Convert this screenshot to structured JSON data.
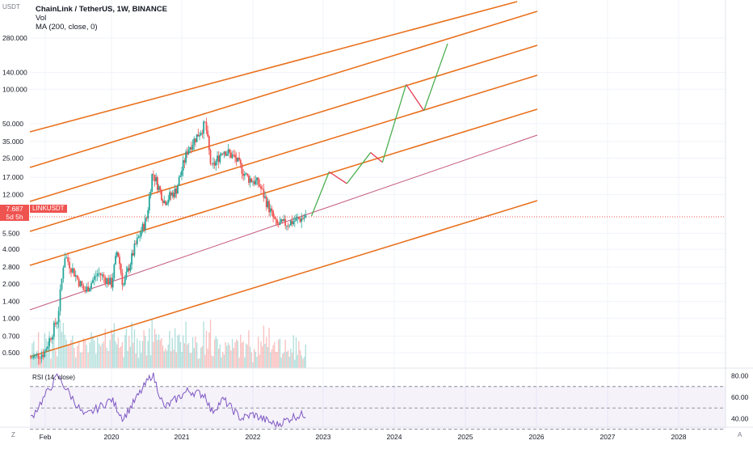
{
  "header": {
    "title": "ChainLink / TetherUS, 1W, BINANCE",
    "vol_label": "Vol",
    "ma_label": "MA (200, close, 0)",
    "unit": "USDT"
  },
  "price": {
    "last": "7.687",
    "countdown": "5d 5h",
    "symbol": "LINKUSDT"
  },
  "rsi": {
    "label": "RSI (14, close)",
    "ticks": [
      "80.00",
      "60.00",
      "40.00"
    ]
  },
  "corner": {
    "left": "Z",
    "right": "A"
  },
  "colors": {
    "channel": "#e8711e",
    "median": "#c2577a",
    "projection_up": "#4caf50",
    "projection_down": "#e53950",
    "up_candle": "#26a69a",
    "down_candle": "#ef5350",
    "rsi_line": "#7e57c2"
  },
  "chart_data": {
    "type": "line",
    "scale": "log",
    "y_ticks": [
      "280.000",
      "140.000",
      "100.000",
      "50.000",
      "35.000",
      "25.000",
      "17.000",
      "12.000",
      "5.500",
      "4.000",
      "2.800",
      "2.000",
      "1.400",
      "1.000",
      "0.700",
      "0.500"
    ],
    "x_ticks": [
      "Feb",
      "2020",
      "2021",
      "2022",
      "2023",
      "2024",
      "2025",
      "2026",
      "2027",
      "2028"
    ],
    "price_path": [
      {
        "date": "2019-01",
        "price": 0.45
      },
      {
        "date": "2019-03",
        "price": 0.5
      },
      {
        "date": "2019-05",
        "price": 1.0
      },
      {
        "date": "2019-06",
        "price": 3.6
      },
      {
        "date": "2019-07",
        "price": 2.8
      },
      {
        "date": "2019-09",
        "price": 1.7
      },
      {
        "date": "2019-11",
        "price": 2.5
      },
      {
        "date": "2020-01",
        "price": 2.0
      },
      {
        "date": "2020-02",
        "price": 4.0
      },
      {
        "date": "2020-03",
        "price": 1.9
      },
      {
        "date": "2020-05",
        "price": 4.2
      },
      {
        "date": "2020-07",
        "price": 7.5
      },
      {
        "date": "2020-08",
        "price": 19.0
      },
      {
        "date": "2020-10",
        "price": 10.5
      },
      {
        "date": "2020-12",
        "price": 13.0
      },
      {
        "date": "2021-02",
        "price": 30.0
      },
      {
        "date": "2021-05",
        "price": 50.0
      },
      {
        "date": "2021-06",
        "price": 20.0
      },
      {
        "date": "2021-08",
        "price": 30.0
      },
      {
        "date": "2021-10",
        "price": 25.0
      },
      {
        "date": "2021-12",
        "price": 17.0
      },
      {
        "date": "2022-02",
        "price": 15.0
      },
      {
        "date": "2022-05",
        "price": 6.5
      },
      {
        "date": "2022-07",
        "price": 6.8
      },
      {
        "date": "2022-10",
        "price": 7.69
      }
    ],
    "projection": [
      {
        "date": "2022-11",
        "price": 7.8
      },
      {
        "date": "2023-02",
        "price": 19.0
      },
      {
        "date": "2023-05",
        "price": 15.0
      },
      {
        "date": "2023-09",
        "price": 28.0
      },
      {
        "date": "2023-11",
        "price": 23.0
      },
      {
        "date": "2024-03",
        "price": 110.0
      },
      {
        "date": "2024-06",
        "price": 65.0
      },
      {
        "date": "2024-10",
        "price": 250.0
      }
    ],
    "rsi_values": [
      {
        "date": "2019-01",
        "rsi": 40
      },
      {
        "date": "2019-05",
        "rsi": 80
      },
      {
        "date": "2019-09",
        "rsi": 42
      },
      {
        "date": "2020-01",
        "rsi": 58
      },
      {
        "date": "2020-03",
        "rsi": 40
      },
      {
        "date": "2020-08",
        "rsi": 82
      },
      {
        "date": "2020-10",
        "rsi": 50
      },
      {
        "date": "2021-02",
        "rsi": 66
      },
      {
        "date": "2021-05",
        "rsi": 62
      },
      {
        "date": "2021-06",
        "rsi": 46
      },
      {
        "date": "2021-08",
        "rsi": 58
      },
      {
        "date": "2021-11",
        "rsi": 40
      },
      {
        "date": "2022-01",
        "rsi": 44
      },
      {
        "date": "2022-05",
        "rsi": 34
      },
      {
        "date": "2022-08",
        "rsi": 42
      },
      {
        "date": "2022-10",
        "rsi": 44
      }
    ]
  }
}
